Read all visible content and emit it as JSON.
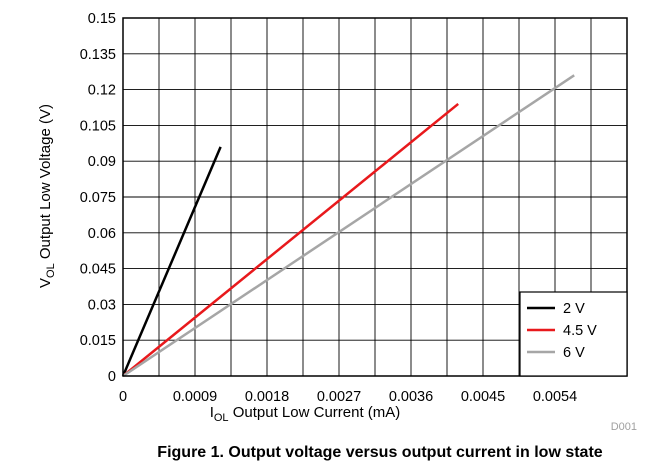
{
  "chart_data": {
    "type": "line",
    "title": "",
    "xlabel_main": "I",
    "xlabel_sub": "OL",
    "xlabel_rest": " Output Low Current (mA)",
    "ylabel_main": "V",
    "ylabel_sub": "OL",
    "ylabel_rest": " Output Low Voltage (V)",
    "xlim": [
      0,
      0.0063
    ],
    "ylim": [
      0,
      0.15
    ],
    "x_ticks": [
      0,
      0.0009,
      0.0018,
      0.0027,
      0.0036,
      0.0045,
      0.0054
    ],
    "x_tick_labels": [
      "0",
      "0.0009",
      "0.0018",
      "0.0027",
      "0.0036",
      "0.0045",
      "0.0054"
    ],
    "x_grid_step": 0.00045,
    "y_ticks": [
      0,
      0.015,
      0.03,
      0.045,
      0.06,
      0.075,
      0.09,
      0.105,
      0.12,
      0.135,
      0.15
    ],
    "y_tick_labels": [
      "0",
      "0.015",
      "0.03",
      "0.045",
      "0.06",
      "0.075",
      "0.09",
      "0.105",
      "0.12",
      "0.135",
      "0.15"
    ],
    "grid": true,
    "legend_position": "bottom-right",
    "series": [
      {
        "name": "2 V",
        "color": "#000000",
        "x": [
          0,
          0.00122
        ],
        "y": [
          0,
          0.096
        ]
      },
      {
        "name": "4.5 V",
        "color": "#e8191c",
        "x": [
          0,
          0.00419
        ],
        "y": [
          0,
          0.114
        ]
      },
      {
        "name": "6 V",
        "color": "#a6a6a6",
        "x": [
          0,
          0.00564
        ],
        "y": [
          0,
          0.126
        ]
      }
    ],
    "figure_code": "D001"
  },
  "caption": "Figure 1. Output voltage versus output current in low state"
}
